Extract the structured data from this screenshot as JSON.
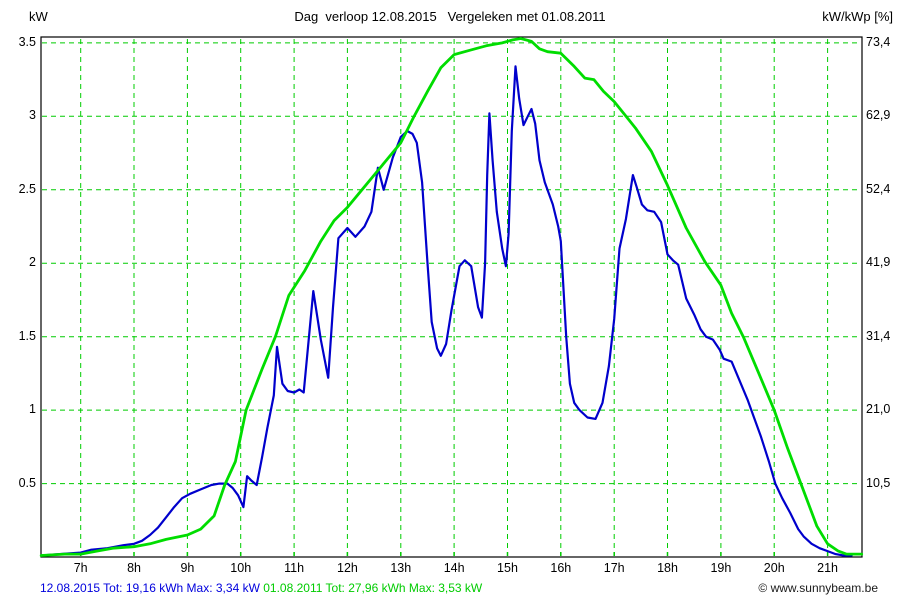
{
  "title": "Dag  verloop 12.08.2015   Vergeleken met 01.08.2011",
  "footer": {
    "series1": "12.08.2015 Tot: 19,16 kWh Max: 3,34 kW",
    "series2": "01.08.2011 Tot: 27,96 kWh Max: 3,53 kW",
    "copyright": "© www.sunnybeam.be"
  },
  "colors": {
    "series1": "#0000cc",
    "series2": "#00dd00",
    "grid": "#00cc00",
    "axis": "#000000",
    "footer1": "#0000dd",
    "footer2": "#00cc00"
  },
  "chart_data": {
    "type": "line",
    "title": "Dag  verloop 12.08.2015   Vergeleken met 01.08.2011",
    "ylabel_left": "kW",
    "ylabel_right": "kW/kWp [%]",
    "xlim": [
      6.256,
      21.645
    ],
    "ylim": [
      0,
      3.54
    ],
    "grid": true,
    "x_ticks": [
      {
        "v": 7,
        "label": "7h"
      },
      {
        "v": 8,
        "label": "8h"
      },
      {
        "v": 9,
        "label": "9h"
      },
      {
        "v": 10,
        "label": "10h"
      },
      {
        "v": 11,
        "label": "11h"
      },
      {
        "v": 12,
        "label": "12h"
      },
      {
        "v": 13,
        "label": "13h"
      },
      {
        "v": 14,
        "label": "14h"
      },
      {
        "v": 15,
        "label": "15h"
      },
      {
        "v": 16,
        "label": "16h"
      },
      {
        "v": 17,
        "label": "17h"
      },
      {
        "v": 18,
        "label": "18h"
      },
      {
        "v": 19,
        "label": "19h"
      },
      {
        "v": 20,
        "label": "20h"
      },
      {
        "v": 21,
        "label": "21h"
      }
    ],
    "y_ticks_left": [
      {
        "v": 3.5,
        "label": "3.5"
      },
      {
        "v": 3.0,
        "label": "3"
      },
      {
        "v": 2.5,
        "label": "2.5"
      },
      {
        "v": 2.0,
        "label": "2"
      },
      {
        "v": 1.5,
        "label": "1.5"
      },
      {
        "v": 1.0,
        "label": "1"
      },
      {
        "v": 0.5,
        "label": "0.5"
      }
    ],
    "y_ticks_right": [
      {
        "v": 3.5,
        "label": "73,4"
      },
      {
        "v": 3.0,
        "label": "62,9"
      },
      {
        "v": 2.5,
        "label": "52,4"
      },
      {
        "v": 2.0,
        "label": "41,9"
      },
      {
        "v": 1.5,
        "label": "31,4"
      },
      {
        "v": 1.0,
        "label": "21,0"
      },
      {
        "v": 0.5,
        "label": "10,5"
      }
    ],
    "series": [
      {
        "name": "12.08.2015",
        "color": "#0000cc",
        "width": 2.2,
        "total_kwh": 19.16,
        "max_kw": 3.34,
        "points": [
          [
            6.26,
            0.01
          ],
          [
            6.6,
            0.02
          ],
          [
            7.0,
            0.03
          ],
          [
            7.2,
            0.05
          ],
          [
            7.5,
            0.06
          ],
          [
            7.8,
            0.08
          ],
          [
            8.0,
            0.09
          ],
          [
            8.15,
            0.11
          ],
          [
            8.3,
            0.15
          ],
          [
            8.45,
            0.2
          ],
          [
            8.6,
            0.27
          ],
          [
            8.75,
            0.34
          ],
          [
            8.9,
            0.4
          ],
          [
            9.05,
            0.43
          ],
          [
            9.25,
            0.46
          ],
          [
            9.45,
            0.49
          ],
          [
            9.6,
            0.5
          ],
          [
            9.75,
            0.5
          ],
          [
            9.85,
            0.47
          ],
          [
            9.95,
            0.42
          ],
          [
            10.05,
            0.34
          ],
          [
            10.12,
            0.55
          ],
          [
            10.2,
            0.52
          ],
          [
            10.3,
            0.49
          ],
          [
            10.4,
            0.68
          ],
          [
            10.5,
            0.88
          ],
          [
            10.62,
            1.1
          ],
          [
            10.68,
            1.43
          ],
          [
            10.78,
            1.18
          ],
          [
            10.88,
            1.13
          ],
          [
            11.0,
            1.12
          ],
          [
            11.1,
            1.14
          ],
          [
            11.18,
            1.12
          ],
          [
            11.36,
            1.81
          ],
          [
            11.5,
            1.48
          ],
          [
            11.64,
            1.22
          ],
          [
            11.73,
            1.7
          ],
          [
            11.83,
            2.17
          ],
          [
            12.0,
            2.24
          ],
          [
            12.15,
            2.18
          ],
          [
            12.32,
            2.25
          ],
          [
            12.45,
            2.35
          ],
          [
            12.57,
            2.65
          ],
          [
            12.68,
            2.5
          ],
          [
            12.85,
            2.72
          ],
          [
            13.0,
            2.86
          ],
          [
            13.12,
            2.9
          ],
          [
            13.22,
            2.88
          ],
          [
            13.3,
            2.82
          ],
          [
            13.4,
            2.55
          ],
          [
            13.5,
            2.0
          ],
          [
            13.58,
            1.6
          ],
          [
            13.68,
            1.42
          ],
          [
            13.75,
            1.37
          ],
          [
            13.85,
            1.45
          ],
          [
            13.95,
            1.68
          ],
          [
            14.1,
            1.98
          ],
          [
            14.2,
            2.02
          ],
          [
            14.32,
            1.98
          ],
          [
            14.45,
            1.7
          ],
          [
            14.52,
            1.63
          ],
          [
            14.58,
            2.0
          ],
          [
            14.62,
            2.6
          ],
          [
            14.66,
            3.02
          ],
          [
            14.72,
            2.7
          ],
          [
            14.8,
            2.35
          ],
          [
            14.9,
            2.1
          ],
          [
            14.97,
            1.98
          ],
          [
            15.02,
            2.2
          ],
          [
            15.08,
            2.9
          ],
          [
            15.15,
            3.34
          ],
          [
            15.22,
            3.12
          ],
          [
            15.3,
            2.94
          ],
          [
            15.38,
            3.0
          ],
          [
            15.45,
            3.05
          ],
          [
            15.52,
            2.95
          ],
          [
            15.6,
            2.7
          ],
          [
            15.7,
            2.55
          ],
          [
            15.85,
            2.4
          ],
          [
            15.95,
            2.25
          ],
          [
            16.0,
            2.15
          ],
          [
            16.1,
            1.5
          ],
          [
            16.17,
            1.18
          ],
          [
            16.25,
            1.05
          ],
          [
            16.35,
            1.0
          ],
          [
            16.5,
            0.95
          ],
          [
            16.65,
            0.94
          ],
          [
            16.78,
            1.05
          ],
          [
            16.9,
            1.3
          ],
          [
            17.0,
            1.62
          ],
          [
            17.1,
            2.1
          ],
          [
            17.22,
            2.3
          ],
          [
            17.35,
            2.6
          ],
          [
            17.42,
            2.52
          ],
          [
            17.52,
            2.4
          ],
          [
            17.62,
            2.36
          ],
          [
            17.75,
            2.35
          ],
          [
            17.88,
            2.28
          ],
          [
            18.0,
            2.06
          ],
          [
            18.1,
            2.02
          ],
          [
            18.2,
            1.99
          ],
          [
            18.35,
            1.76
          ],
          [
            18.5,
            1.65
          ],
          [
            18.62,
            1.55
          ],
          [
            18.72,
            1.5
          ],
          [
            18.85,
            1.48
          ],
          [
            18.98,
            1.41
          ],
          [
            19.05,
            1.35
          ],
          [
            19.2,
            1.33
          ],
          [
            19.35,
            1.2
          ],
          [
            19.5,
            1.07
          ],
          [
            19.62,
            0.95
          ],
          [
            19.75,
            0.82
          ],
          [
            19.9,
            0.65
          ],
          [
            20.02,
            0.5
          ],
          [
            20.15,
            0.4
          ],
          [
            20.3,
            0.3
          ],
          [
            20.45,
            0.19
          ],
          [
            20.55,
            0.14
          ],
          [
            20.7,
            0.09
          ],
          [
            20.85,
            0.06
          ],
          [
            21.0,
            0.04
          ],
          [
            21.15,
            0.02
          ],
          [
            21.3,
            0.01
          ],
          [
            21.45,
            0.01
          ]
        ]
      },
      {
        "name": "01.08.2011",
        "color": "#00dd00",
        "width": 2.8,
        "total_kwh": 27.96,
        "max_kw": 3.53,
        "points": [
          [
            6.26,
            0.01
          ],
          [
            6.7,
            0.02
          ],
          [
            7.0,
            0.02
          ],
          [
            7.3,
            0.04
          ],
          [
            7.6,
            0.06
          ],
          [
            8.0,
            0.07
          ],
          [
            8.3,
            0.09
          ],
          [
            8.6,
            0.12
          ],
          [
            9.0,
            0.15
          ],
          [
            9.25,
            0.19
          ],
          [
            9.5,
            0.28
          ],
          [
            9.7,
            0.49
          ],
          [
            9.9,
            0.65
          ],
          [
            10.1,
            1.0
          ],
          [
            10.4,
            1.28
          ],
          [
            10.65,
            1.5
          ],
          [
            10.9,
            1.78
          ],
          [
            11.2,
            1.95
          ],
          [
            11.5,
            2.15
          ],
          [
            11.75,
            2.29
          ],
          [
            12.0,
            2.38
          ],
          [
            12.25,
            2.49
          ],
          [
            12.5,
            2.6
          ],
          [
            12.75,
            2.71
          ],
          [
            13.0,
            2.82
          ],
          [
            13.25,
            3.0
          ],
          [
            13.5,
            3.17
          ],
          [
            13.75,
            3.33
          ],
          [
            14.0,
            3.42
          ],
          [
            14.3,
            3.45
          ],
          [
            14.6,
            3.48
          ],
          [
            14.9,
            3.5
          ],
          [
            15.1,
            3.52
          ],
          [
            15.25,
            3.53
          ],
          [
            15.45,
            3.51
          ],
          [
            15.6,
            3.46
          ],
          [
            15.75,
            3.44
          ],
          [
            16.0,
            3.43
          ],
          [
            16.25,
            3.34
          ],
          [
            16.45,
            3.26
          ],
          [
            16.62,
            3.25
          ],
          [
            16.8,
            3.17
          ],
          [
            17.0,
            3.1
          ],
          [
            17.2,
            3.01
          ],
          [
            17.4,
            2.92
          ],
          [
            17.7,
            2.76
          ],
          [
            18.0,
            2.53
          ],
          [
            18.35,
            2.24
          ],
          [
            18.7,
            2.01
          ],
          [
            19.0,
            1.85
          ],
          [
            19.2,
            1.66
          ],
          [
            19.42,
            1.5
          ],
          [
            19.7,
            1.26
          ],
          [
            20.0,
            1.0
          ],
          [
            20.25,
            0.74
          ],
          [
            20.5,
            0.5
          ],
          [
            20.8,
            0.21
          ],
          [
            21.0,
            0.09
          ],
          [
            21.2,
            0.04
          ],
          [
            21.35,
            0.02
          ],
          [
            21.64,
            0.02
          ]
        ]
      }
    ]
  }
}
